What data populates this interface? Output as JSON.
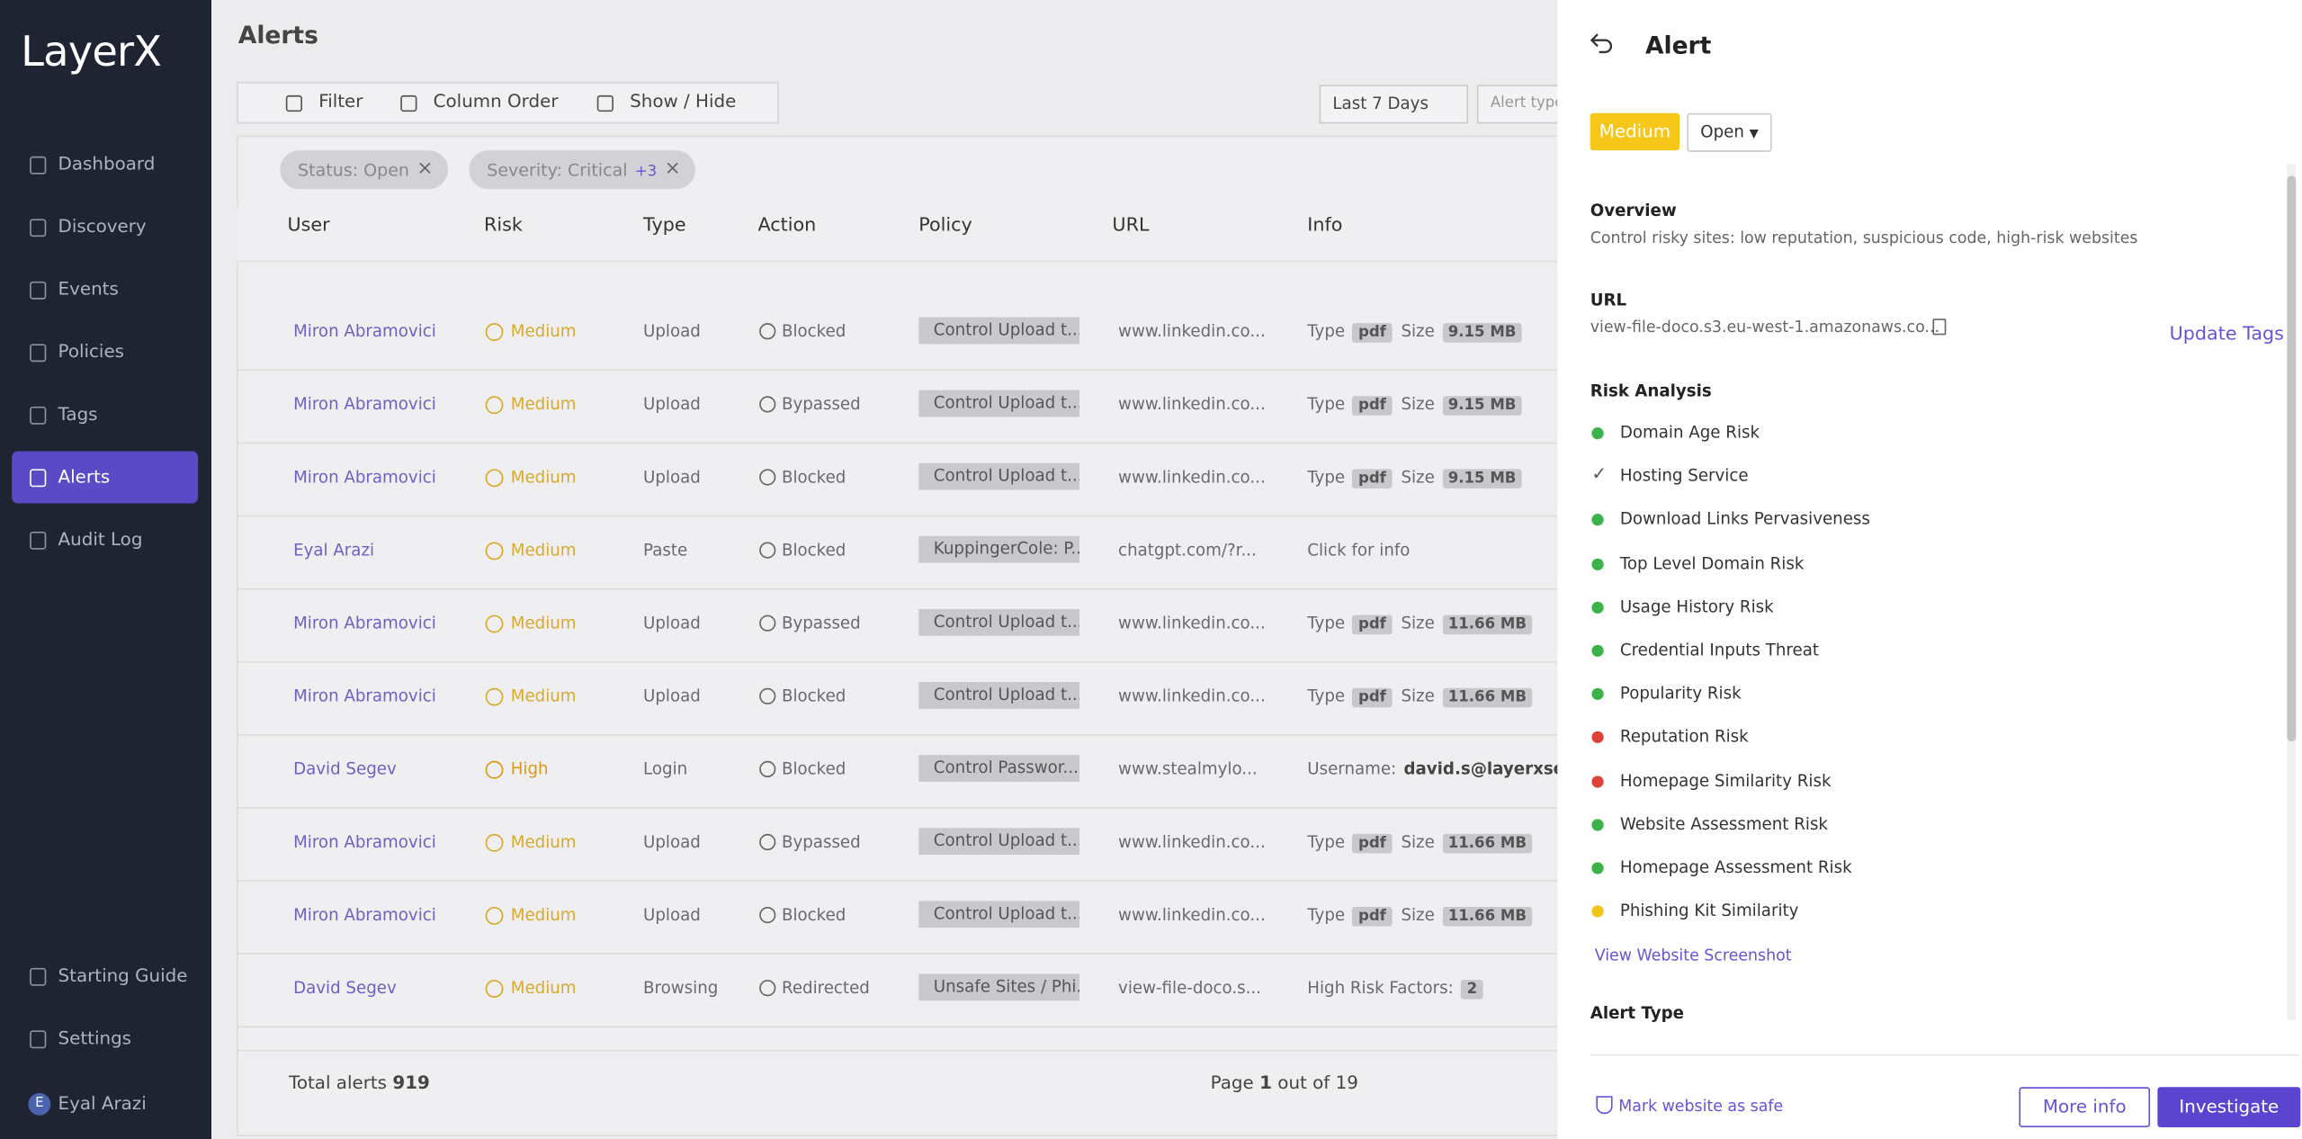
{
  "sidebar": {
    "logo": "LayerX",
    "nav": [
      {
        "label": "Dashboard"
      },
      {
        "label": "Discovery"
      },
      {
        "label": "Events"
      },
      {
        "label": "Policies"
      },
      {
        "label": "Tags"
      },
      {
        "label": "Alerts",
        "active": true
      },
      {
        "label": "Audit Log"
      }
    ],
    "bottom": [
      "Starting Guide",
      "Settings"
    ],
    "user": {
      "initial": "E",
      "name": "Eyal Arazi"
    }
  },
  "header": {
    "title": "Alerts"
  },
  "toolbar": {
    "buttons": [
      "Filter",
      "Column Order",
      "Show / Hide"
    ],
    "date_range": "Last 7 Days",
    "alert_type": "Alert type"
  },
  "filters": [
    {
      "label": "Status: Open"
    },
    {
      "label": "Severity: Critical",
      "extra": "+3"
    }
  ],
  "table": {
    "columns": [
      "User",
      "Risk",
      "Type",
      "Action",
      "Policy",
      "URL",
      "Info"
    ],
    "rows": [
      {
        "user": "Miron Abramovici",
        "risk": "Medium",
        "type": "Upload",
        "action": "Blocked",
        "policy": "Control Upload t...",
        "url": "www.linkedin.co...",
        "info": [
          {
            "text": "Type"
          },
          {
            "chip": "pdf"
          },
          {
            "text": "Size"
          },
          {
            "chip": "9.15 MB"
          }
        ]
      },
      {
        "user": "Miron Abramovici",
        "risk": "Medium",
        "type": "Upload",
        "action": "Bypassed",
        "policy": "Control Upload t...",
        "url": "www.linkedin.co...",
        "info": [
          {
            "text": "Type"
          },
          {
            "chip": "pdf"
          },
          {
            "text": "Size"
          },
          {
            "chip": "9.15 MB"
          }
        ]
      },
      {
        "user": "Miron Abramovici",
        "risk": "Medium",
        "type": "Upload",
        "action": "Blocked",
        "policy": "Control Upload t...",
        "url": "www.linkedin.co...",
        "info": [
          {
            "text": "Type"
          },
          {
            "chip": "pdf"
          },
          {
            "text": "Size"
          },
          {
            "chip": "9.15 MB"
          }
        ]
      },
      {
        "user": "Eyal Arazi",
        "risk": "Medium",
        "type": "Paste",
        "action": "Blocked",
        "policy": "KuppingerCole: P...",
        "url": "chatgpt.com/?r...",
        "info": [
          {
            "text": "Click for info"
          }
        ]
      },
      {
        "user": "Miron Abramovici",
        "risk": "Medium",
        "type": "Upload",
        "action": "Bypassed",
        "policy": "Control Upload t...",
        "url": "www.linkedin.co...",
        "info": [
          {
            "text": "Type"
          },
          {
            "chip": "pdf"
          },
          {
            "text": "Size"
          },
          {
            "chip": "11.66 MB"
          }
        ]
      },
      {
        "user": "Miron Abramovici",
        "risk": "Medium",
        "type": "Upload",
        "action": "Blocked",
        "policy": "Control Upload t...",
        "url": "www.linkedin.co...",
        "info": [
          {
            "text": "Type"
          },
          {
            "chip": "pdf"
          },
          {
            "text": "Size"
          },
          {
            "chip": "11.66 MB"
          }
        ]
      },
      {
        "user": "David Segev",
        "risk": "High",
        "type": "Login",
        "action": "Blocked",
        "policy": "Control Passwor...",
        "url": "www.stealmylo...",
        "info": [
          {
            "text": "Username:"
          },
          {
            "bold": "david.s@layerxsecurit"
          }
        ]
      },
      {
        "user": "Miron Abramovici",
        "risk": "Medium",
        "type": "Upload",
        "action": "Bypassed",
        "policy": "Control Upload t...",
        "url": "www.linkedin.co...",
        "info": [
          {
            "text": "Type"
          },
          {
            "chip": "pdf"
          },
          {
            "text": "Size"
          },
          {
            "chip": "11.66 MB"
          }
        ]
      },
      {
        "user": "Miron Abramovici",
        "risk": "Medium",
        "type": "Upload",
        "action": "Blocked",
        "policy": "Control Upload t...",
        "url": "www.linkedin.co...",
        "info": [
          {
            "text": "Type"
          },
          {
            "chip": "pdf"
          },
          {
            "text": "Size"
          },
          {
            "chip": "11.66 MB"
          }
        ]
      },
      {
        "user": "David Segev",
        "risk": "Medium",
        "type": "Browsing",
        "action": "Redirected",
        "policy": "Unsafe Sites / Phi...",
        "url": "view-file-doco.s...",
        "info": [
          {
            "text": "High Risk Factors:"
          },
          {
            "chip": "2"
          }
        ]
      }
    ]
  },
  "footer": {
    "total_label": "Total alerts",
    "total": 919,
    "page_label": "Page",
    "page": 1,
    "page_of": "out of 19"
  },
  "panel": {
    "title": "Alert",
    "severity": "Medium",
    "status": "Open",
    "overview_title": "Overview",
    "overview": "Control risky sites: low reputation, suspicious code, high-risk websites",
    "url_title": "URL",
    "url": "view-file-doco.s3.eu-west-1.amazonaws.co...",
    "update_tags": "Update Tags",
    "risk_title": "Risk Analysis",
    "risks": [
      {
        "label": "Domain Age Risk",
        "status": "ok"
      },
      {
        "label": "Hosting Service",
        "status": "check"
      },
      {
        "label": "Download Links Pervasiveness",
        "status": "ok"
      },
      {
        "label": "Top Level Domain Risk",
        "status": "ok"
      },
      {
        "label": "Usage History Risk",
        "status": "ok"
      },
      {
        "label": "Credential Inputs Threat",
        "status": "ok"
      },
      {
        "label": "Popularity Risk",
        "status": "ok"
      },
      {
        "label": "Reputation Risk",
        "status": "fail"
      },
      {
        "label": "Homepage Similarity Risk",
        "status": "fail"
      },
      {
        "label": "Website Assessment Risk",
        "status": "ok"
      },
      {
        "label": "Homepage Assessment Risk",
        "status": "ok"
      },
      {
        "label": "Phishing Kit Similarity",
        "status": "warn"
      }
    ],
    "screenshot_link": "View Website Screenshot",
    "alert_type_title": "Alert Type",
    "mark_safe": "Mark website as safe",
    "more_info": "More info",
    "investigate": "Investigate"
  }
}
